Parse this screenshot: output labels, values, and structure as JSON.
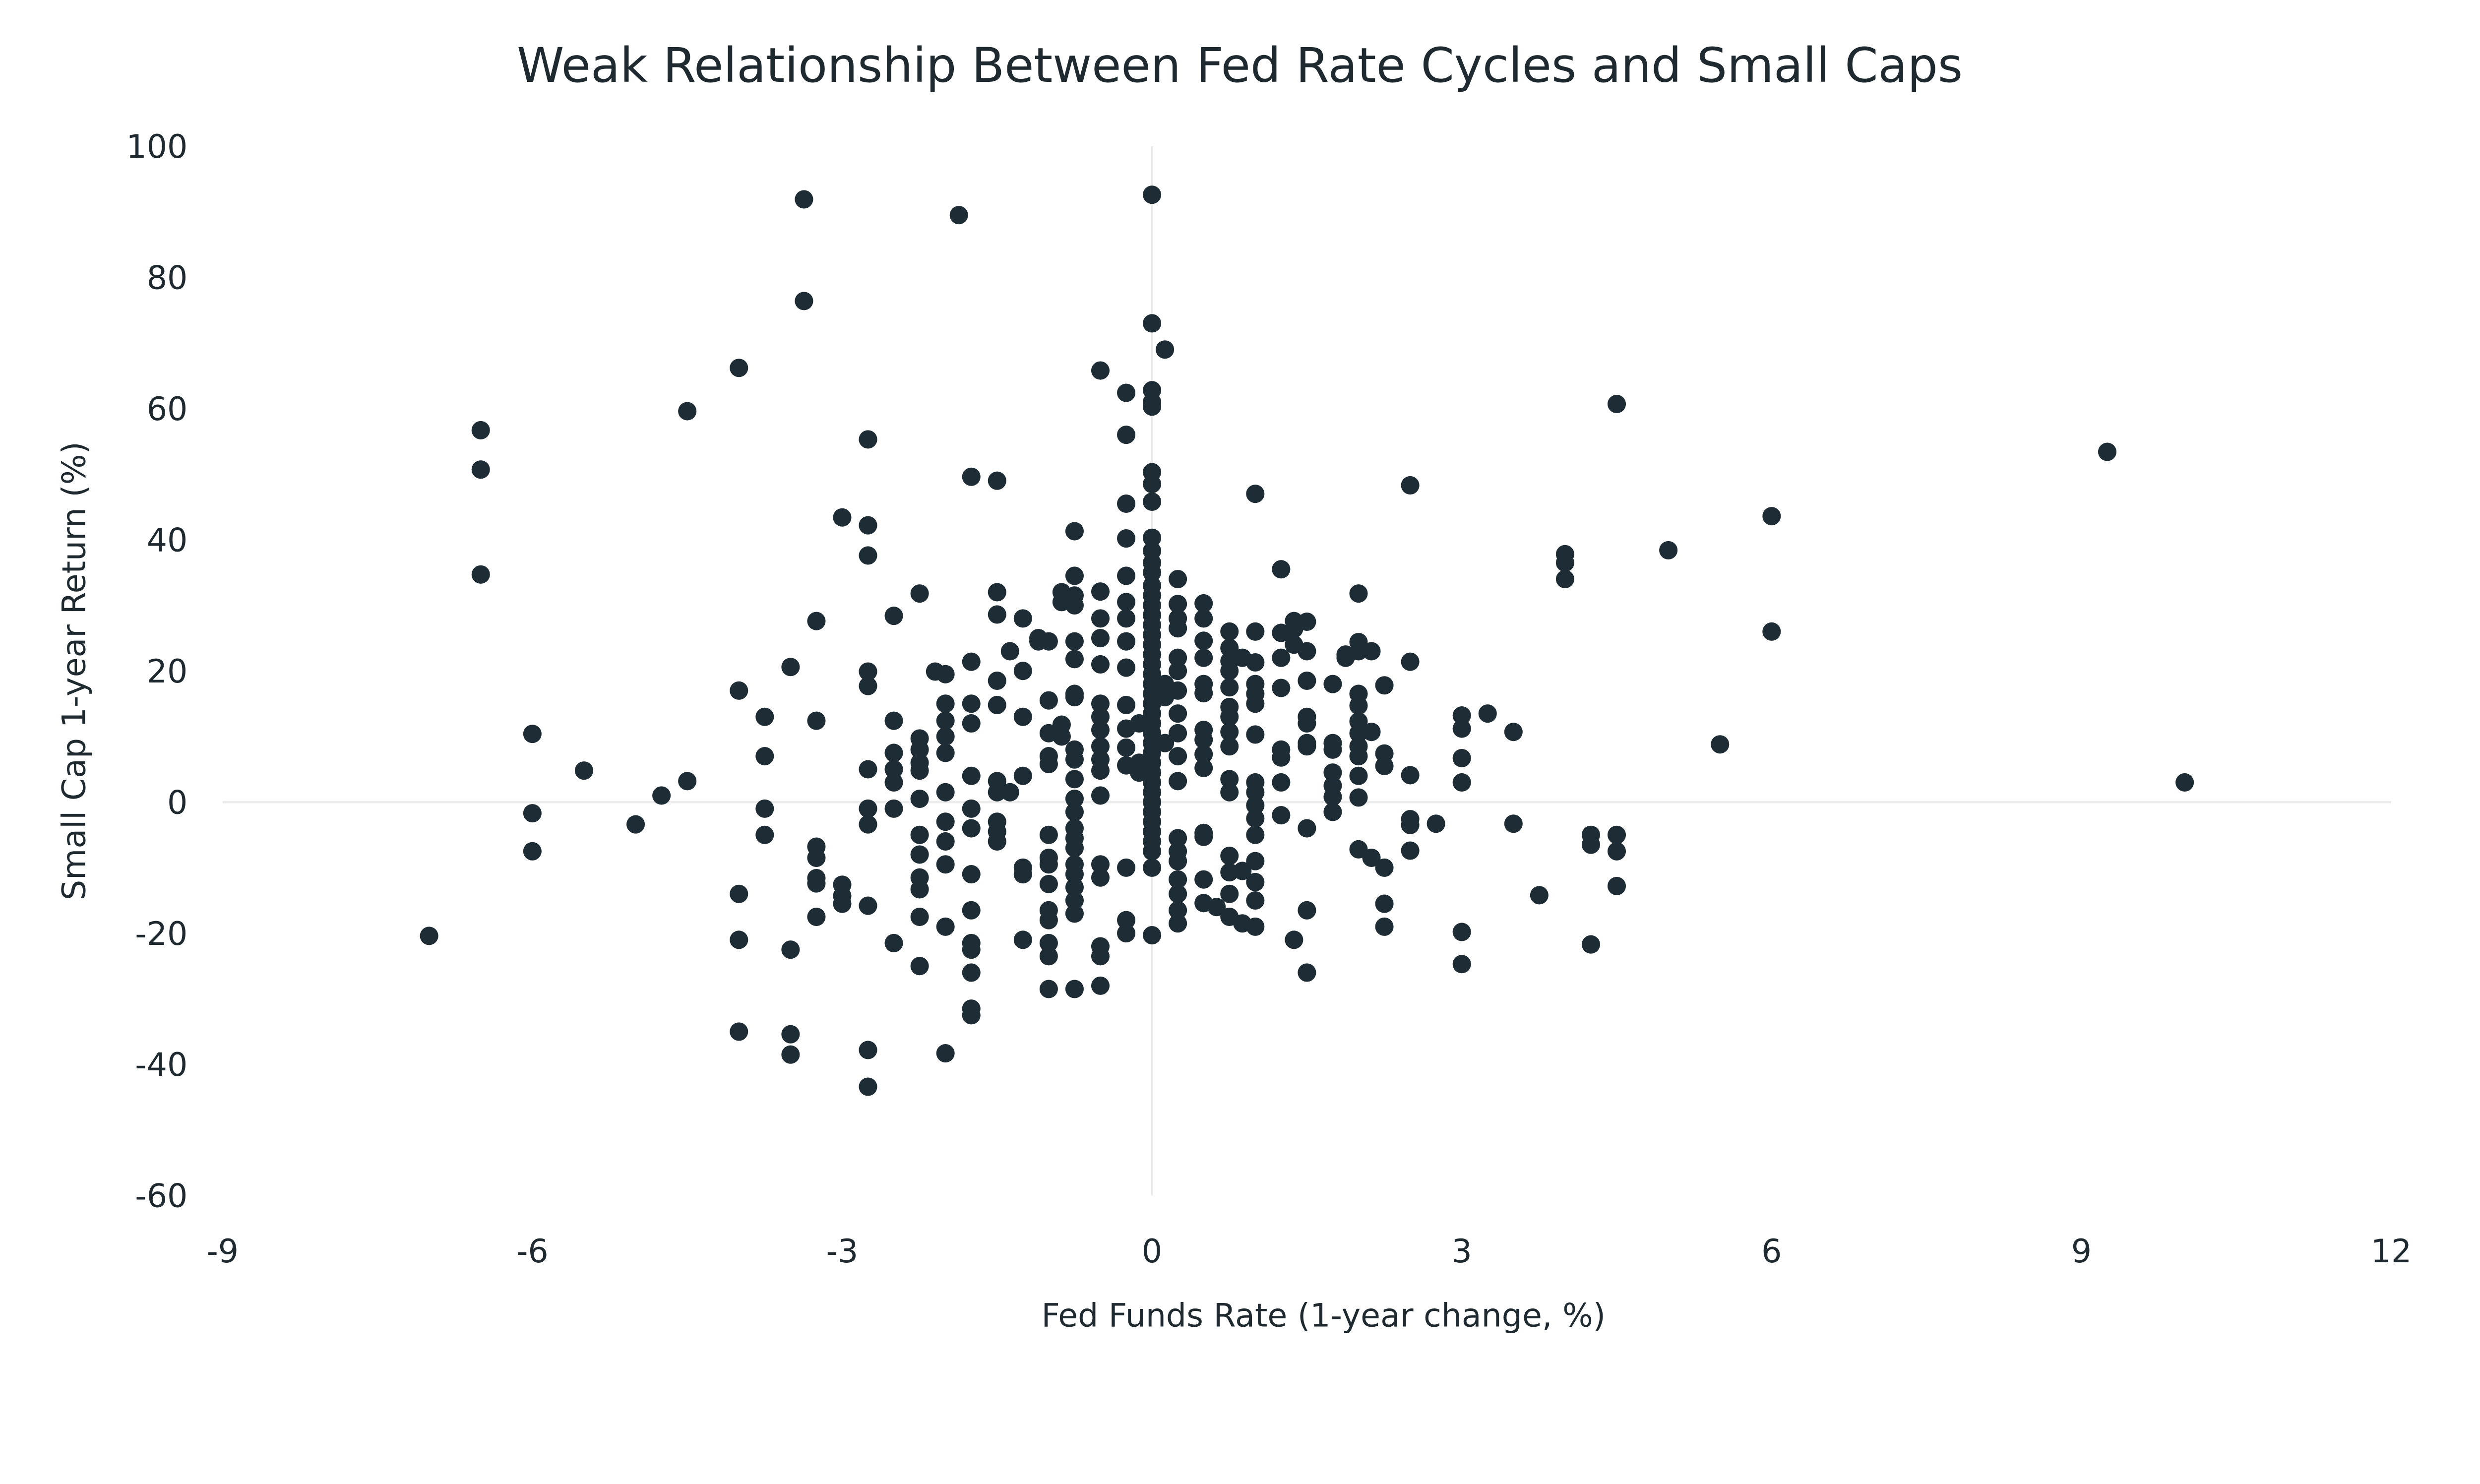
{
  "chart_data": {
    "type": "scatter",
    "title": "Weak Relationship Between Fed Rate Cycles and Small Caps",
    "xlabel": "Fed Funds Rate (1-year change, %)",
    "ylabel": "Small Cap 1-year Return (%)",
    "xlim": [
      -9,
      12
    ],
    "ylim": [
      -60,
      100
    ],
    "xticks": [
      -9,
      -6,
      -3,
      0,
      3,
      6,
      9,
      12
    ],
    "yticks": [
      100,
      80,
      60,
      40,
      20,
      0,
      -20,
      -40,
      -60
    ],
    "grid": false,
    "zero_lines": true,
    "legend": "none",
    "color": "#1e2d35",
    "points_grouped_by_x": [
      {
        "x": -7,
        "y": [
          -20.4
        ]
      },
      {
        "x": -6.5,
        "y": [
          56.7,
          50.7,
          34.7
        ]
      },
      {
        "x": -6,
        "y": [
          10.4,
          -1.7,
          -7.5
        ]
      },
      {
        "x": -5.5,
        "y": [
          4.8
        ]
      },
      {
        "x": -5,
        "y": [
          -3.4
        ]
      },
      {
        "x": -4.75,
        "y": [
          1
        ]
      },
      {
        "x": -4.5,
        "y": [
          59.6,
          3.2
        ]
      },
      {
        "x": -4,
        "y": [
          66.2,
          17,
          -14,
          -21,
          -35
        ]
      },
      {
        "x": -3.75,
        "y": [
          13,
          7,
          -1,
          -5
        ]
      },
      {
        "x": -3.5,
        "y": [
          20.6,
          -22.5,
          -35.4,
          -38.5
        ]
      },
      {
        "x": -3.37,
        "y": [
          91.9,
          76.4
        ]
      },
      {
        "x": -3.25,
        "y": [
          27.6,
          12.4,
          -6.8,
          -8.5,
          -11.6,
          -12.4,
          -17.5
        ]
      },
      {
        "x": -3,
        "y": [
          43.4,
          -12.6,
          -14.3,
          -15.5
        ]
      },
      {
        "x": -2.75,
        "y": [
          55.3,
          42.2,
          37.6,
          19.9,
          17.7,
          5,
          -1,
          -3.4,
          -15.8,
          -37.8,
          -43.4
        ]
      },
      {
        "x": -2.5,
        "y": [
          28.4,
          12.4,
          7.5,
          5,
          3,
          -1,
          -21.5
        ]
      },
      {
        "x": -2.25,
        "y": [
          31.8,
          9.7,
          8,
          6,
          4.8,
          0.5,
          -5,
          -8,
          -11.5,
          -13.3,
          -17.5,
          -25
        ]
      },
      {
        "x": -2.1,
        "y": [
          19.9
        ]
      },
      {
        "x": -2,
        "y": [
          19.5,
          15,
          12.4,
          10,
          7.5,
          1.5,
          -3,
          -6,
          -9.5,
          -19,
          -38.3
        ]
      },
      {
        "x": -1.87,
        "y": [
          89.5
        ]
      },
      {
        "x": -1.75,
        "y": [
          49.6,
          21.4,
          15,
          12,
          4,
          -1,
          -4,
          -11,
          -16.5,
          -21.5,
          -22.5,
          -26,
          -31.5,
          -32.5
        ]
      },
      {
        "x": -1.5,
        "y": [
          49,
          32,
          28.6,
          18.5,
          14.8,
          3.2,
          1.5,
          -3,
          -4.5,
          -6
        ]
      },
      {
        "x": -1.375,
        "y": [
          23,
          1.5
        ]
      },
      {
        "x": -1.25,
        "y": [
          28,
          20,
          13,
          4,
          -10,
          -11,
          -21
        ]
      },
      {
        "x": -1.1,
        "y": [
          25,
          24.5
        ]
      },
      {
        "x": -1,
        "y": [
          24.5,
          15.5,
          10.5,
          7,
          5.8,
          -5,
          -8.5,
          -9.5,
          -12.5,
          -16.5,
          -18,
          -21.5,
          -23.5,
          -28.5
        ]
      },
      {
        "x": -0.875,
        "y": [
          32,
          30.5,
          11.8,
          10
        ]
      },
      {
        "x": -0.75,
        "y": [
          41.3,
          34.5,
          31.5,
          30,
          24.5,
          21.8,
          16.5,
          16,
          8,
          6.5,
          3.5,
          0.5,
          -1.5,
          -4,
          -5.5,
          -7,
          -9.5,
          -11,
          -13,
          -15,
          -17,
          -28.5
        ]
      },
      {
        "x": -0.5,
        "y": [
          65.8,
          32.1,
          28,
          25,
          21,
          15,
          13,
          11,
          8.5,
          6.5,
          4.8,
          1,
          -9.5,
          -11.5,
          -22,
          -23.5,
          -28
        ]
      },
      {
        "x": -0.25,
        "y": [
          62.4,
          56,
          45.5,
          40.2,
          34.5,
          30.5,
          28,
          24.5,
          20.5,
          14.8,
          11.2,
          8.3,
          5.6,
          -10,
          -18,
          -20
        ]
      },
      {
        "x": -0.125,
        "y": [
          12,
          6,
          4.5
        ]
      },
      {
        "x": 0,
        "y": [
          92.6,
          73,
          62.8,
          61,
          60.3,
          50.3,
          48.5,
          45.8,
          40.3,
          38.3,
          36.5,
          35,
          33,
          31.5,
          30,
          28.5,
          27,
          25.5,
          24,
          22.5,
          21,
          19.5,
          18,
          16.5,
          15,
          13.5,
          12,
          10.5,
          9,
          7.5,
          6,
          4.5,
          3,
          1.5,
          0,
          -1.5,
          -3,
          -4.5,
          -6,
          -7.5,
          -10,
          -20.3
        ]
      },
      {
        "x": 0.125,
        "y": [
          69,
          18,
          16,
          9
        ]
      },
      {
        "x": 0.25,
        "y": [
          34,
          30.2,
          28,
          26.5,
          22,
          20,
          17,
          13.5,
          10.5,
          7,
          3.2,
          -5.5,
          -7.5,
          -9,
          -11.8,
          -14,
          -16.5,
          -18.5
        ]
      },
      {
        "x": 0.5,
        "y": [
          30.3,
          28,
          24.6,
          22,
          18,
          16.6,
          11,
          9.5,
          7.3,
          5.2,
          -4.7,
          -5.3,
          -11.8,
          -15.4
        ]
      },
      {
        "x": 0.625,
        "y": [
          -16
        ]
      },
      {
        "x": 0.75,
        "y": [
          26,
          23.5,
          21.5,
          20,
          17.5,
          14.5,
          13,
          10.7,
          8.5,
          3.5,
          1.5,
          -8.2,
          -10.7,
          -14,
          -17.5
        ]
      },
      {
        "x": 0.875,
        "y": [
          22,
          -10.5,
          -18.5
        ]
      },
      {
        "x": 1,
        "y": [
          47,
          26,
          21.3,
          18,
          16.5,
          15,
          10.3,
          3,
          1.5,
          -0.5,
          -2.5,
          -5,
          -9,
          -12.2,
          -15,
          -19
        ]
      },
      {
        "x": 1.25,
        "y": [
          35.5,
          25.8,
          22,
          17.4,
          8,
          6.8,
          3,
          -2
        ]
      },
      {
        "x": 1.375,
        "y": [
          27.6,
          26.4,
          24,
          -21
        ]
      },
      {
        "x": 1.5,
        "y": [
          27.5,
          23,
          18.5,
          13,
          12,
          9,
          8.5,
          -4,
          -16.5,
          -26
        ]
      },
      {
        "x": 1.75,
        "y": [
          18,
          9,
          8,
          4.5,
          2.5,
          0.8,
          -1.5
        ]
      },
      {
        "x": 1.875,
        "y": [
          22.5,
          22
        ]
      },
      {
        "x": 2,
        "y": [
          31.8,
          24.4,
          23,
          16.5,
          14.7,
          12.3,
          10.5,
          8.5,
          7,
          4,
          0.7,
          -7.2
        ]
      },
      {
        "x": 2.125,
        "y": [
          23,
          10.7,
          -8.5
        ]
      },
      {
        "x": 2.25,
        "y": [
          17.8,
          7.4,
          5.5,
          -10,
          -15.5,
          -19
        ]
      },
      {
        "x": 2.5,
        "y": [
          48.3,
          21.4,
          4.1,
          -2.6,
          -3.5,
          -7.4
        ]
      },
      {
        "x": 2.75,
        "y": [
          -3.3
        ]
      },
      {
        "x": 3,
        "y": [
          13.2,
          11.2,
          6.7,
          3,
          -19.8,
          -24.7
        ]
      },
      {
        "x": 3.25,
        "y": [
          13.5
        ]
      },
      {
        "x": 3.5,
        "y": [
          10.7,
          -3.3
        ]
      },
      {
        "x": 3.75,
        "y": [
          -14.2
        ]
      },
      {
        "x": 4,
        "y": [
          37.8,
          36.5,
          34
        ]
      },
      {
        "x": 4.25,
        "y": [
          -5,
          -6.5,
          -21.7
        ]
      },
      {
        "x": 4.5,
        "y": [
          60.7,
          -5,
          -7.5,
          -12.8
        ]
      },
      {
        "x": 5,
        "y": [
          38.4
        ]
      },
      {
        "x": 5.5,
        "y": [
          8.8
        ]
      },
      {
        "x": 6,
        "y": [
          43.6,
          26
        ]
      },
      {
        "x": 9.25,
        "y": [
          53.4
        ]
      },
      {
        "x": 10,
        "y": [
          3
        ]
      }
    ]
  }
}
